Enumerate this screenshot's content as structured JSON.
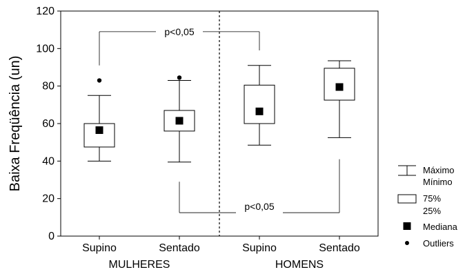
{
  "chart_data": {
    "type": "boxplot",
    "ylabel": "Baixa Freqüência (un)",
    "ylim": [
      0,
      120
    ],
    "yticks": [
      "0",
      "20",
      "40",
      "60",
      "80",
      "100",
      "120"
    ],
    "categories": [
      "Supino",
      "Sentado",
      "Supino",
      "Sentado"
    ],
    "groups": [
      "MULHERES",
      "HOMENS"
    ],
    "boxes": [
      {
        "category": "Supino",
        "group": "MULHERES",
        "max": 75,
        "min": 40,
        "q3": 60,
        "q1": 47.5,
        "median": 56.5,
        "outliers": [
          83
        ]
      },
      {
        "category": "Sentado",
        "group": "MULHERES",
        "max": 83,
        "min": 39.5,
        "q3": 67,
        "q1": 56,
        "median": 61.5,
        "outliers": [
          84.5
        ]
      },
      {
        "category": "Supino",
        "group": "HOMENS",
        "max": 91,
        "min": 48.5,
        "q3": 80.5,
        "q1": 60,
        "median": 66.5,
        "outliers": []
      },
      {
        "category": "Sentado",
        "group": "HOMENS",
        "max": 93.5,
        "min": 52.5,
        "q3": 89.5,
        "q1": 72.5,
        "median": 79.5,
        "outliers": []
      }
    ],
    "annotations": [
      {
        "text": "p<0,05",
        "from": 0,
        "to": 2
      },
      {
        "text": "p<0,05",
        "from": 1,
        "to": 3
      }
    ],
    "grid": false,
    "legend_position": "right",
    "legend": {
      "whisker": [
        "Máximo",
        "Mínimo"
      ],
      "box": [
        "75%",
        "25%"
      ],
      "median": "Mediana",
      "outliers": "Outliers"
    }
  }
}
